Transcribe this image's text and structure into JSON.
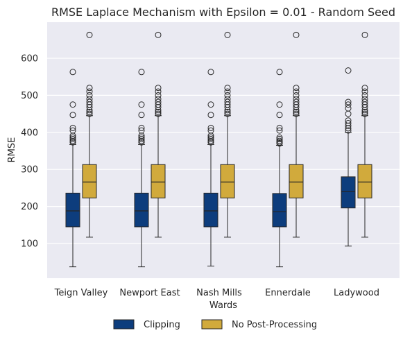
{
  "chart_data": {
    "type": "box",
    "title": "RMSE Laplace Mechanism with Epsilon = 0.01  - Random Seed",
    "xlabel": "Wards",
    "ylabel": "RMSE",
    "ylim": [
      0,
      695
    ],
    "yticks": [
      100,
      200,
      300,
      400,
      500,
      600
    ],
    "grid": true,
    "legend_position": "bottom-center",
    "categories": [
      "Teign Valley",
      "Newport East",
      "Nash Mills",
      "Ennerdale",
      "Ladywood"
    ],
    "series": [
      {
        "name": "Clipping",
        "color": "#0d3d7d",
        "boxes": [
          {
            "whisker_low": 37,
            "q1": 145,
            "median": 188,
            "q3": 236,
            "whisker_high": 367,
            "outliers": [
              373,
              377,
              382,
              386,
              391,
              405,
              412,
              447,
              475,
              563
            ]
          },
          {
            "whisker_low": 37,
            "q1": 145,
            "median": 188,
            "q3": 236,
            "whisker_high": 367,
            "outliers": [
              373,
              377,
              382,
              386,
              391,
              405,
              412,
              447,
              475,
              563
            ]
          },
          {
            "whisker_low": 39,
            "q1": 145,
            "median": 188,
            "q3": 236,
            "whisker_high": 367,
            "outliers": [
              373,
              377,
              382,
              386,
              391,
              405,
              412,
              447,
              475,
              563
            ]
          },
          {
            "whisker_low": 37,
            "q1": 145,
            "median": 186,
            "q3": 235,
            "whisker_high": 365,
            "outliers": [
              370,
              373,
              377,
              382,
              386,
              405,
              412,
              447,
              475,
              563
            ]
          },
          {
            "whisker_low": 93,
            "q1": 196,
            "median": 240,
            "q3": 280,
            "whisker_high": 400,
            "outliers": [
              405,
              411,
              418,
              425,
              432,
              450,
              465,
              475,
              482,
              567
            ]
          }
        ]
      },
      {
        "name": "No Post-Processing",
        "color": "#d1aa3c",
        "boxes": [
          {
            "whisker_low": 117,
            "q1": 223,
            "median": 266,
            "q3": 313,
            "whisker_high": 445,
            "outliers": [
              450,
              455,
              460,
              468,
              475,
              482,
              490,
              500,
              510,
              520,
              663
            ]
          },
          {
            "whisker_low": 117,
            "q1": 223,
            "median": 266,
            "q3": 313,
            "whisker_high": 445,
            "outliers": [
              450,
              455,
              460,
              468,
              475,
              482,
              490,
              500,
              510,
              520,
              663
            ]
          },
          {
            "whisker_low": 117,
            "q1": 223,
            "median": 266,
            "q3": 313,
            "whisker_high": 445,
            "outliers": [
              450,
              455,
              460,
              468,
              475,
              482,
              490,
              500,
              510,
              520,
              663
            ]
          },
          {
            "whisker_low": 117,
            "q1": 223,
            "median": 266,
            "q3": 313,
            "whisker_high": 445,
            "outliers": [
              450,
              455,
              460,
              468,
              475,
              482,
              490,
              500,
              510,
              520,
              663
            ]
          },
          {
            "whisker_low": 117,
            "q1": 223,
            "median": 266,
            "q3": 313,
            "whisker_high": 445,
            "outliers": [
              450,
              455,
              460,
              468,
              475,
              482,
              490,
              500,
              510,
              520,
              663
            ]
          }
        ]
      }
    ]
  }
}
